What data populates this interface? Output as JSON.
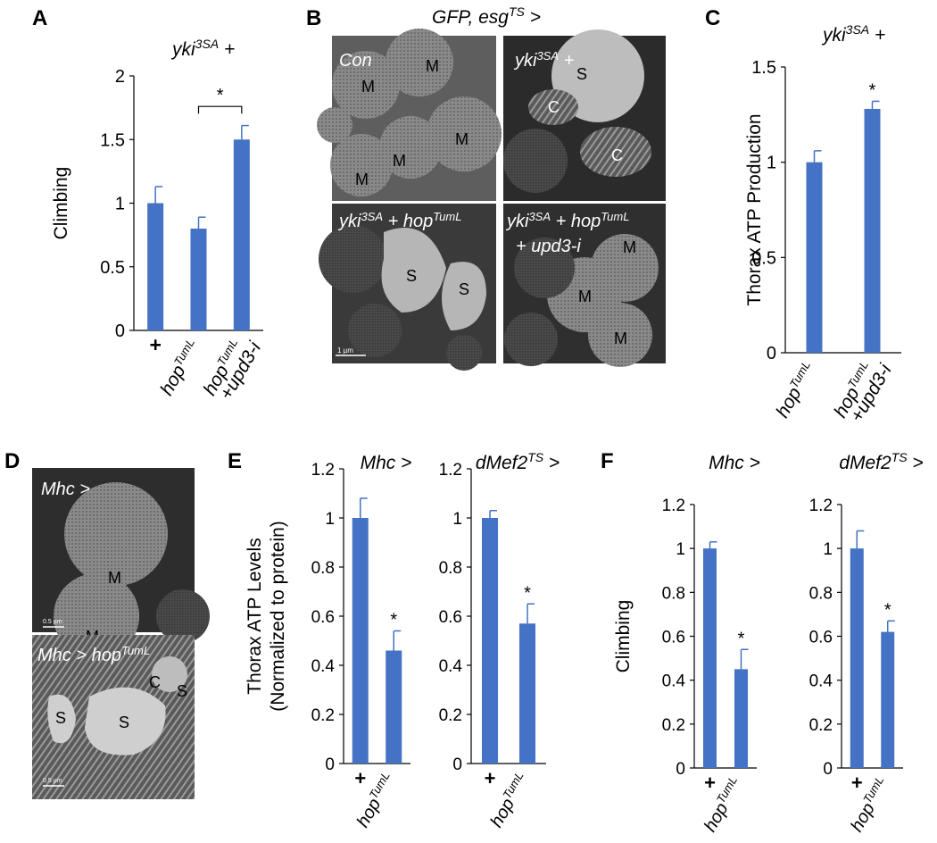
{
  "colors": {
    "bar": "#4472c4",
    "error": "#4472c4",
    "axis": "#000000"
  },
  "panels": {
    "A": {
      "letter": "A",
      "header": "yki3SA +"
    },
    "B": {
      "letter": "B",
      "header": "GFP, esgTS >",
      "images": [
        {
          "label": "Con",
          "marks": [
            "M",
            "M",
            "M",
            "M",
            "M",
            "M"
          ]
        },
        {
          "label": "yki3SA +",
          "marks": [
            "S",
            "C",
            "C"
          ]
        },
        {
          "label": "yki3SA + hopTumL",
          "marks": [
            "S",
            "S"
          ],
          "scalebar": "1 µm"
        },
        {
          "label": "yki3SA + hopTumL + upd3-i",
          "marks": [
            "M",
            "M",
            "M"
          ]
        }
      ]
    },
    "C": {
      "letter": "C",
      "header": "yki3SA +"
    },
    "D": {
      "letter": "D",
      "images": [
        {
          "label": "Mhc >",
          "marks": [
            "M",
            "M"
          ],
          "scalebar": "0.5 µm"
        },
        {
          "label": "Mhc > hopTumL",
          "marks": [
            "C",
            "S",
            "S",
            "S"
          ],
          "scalebar": "0.5 µm"
        }
      ]
    },
    "E": {
      "letter": "E"
    },
    "F": {
      "letter": "F"
    }
  },
  "chart_data": [
    {
      "id": "A",
      "type": "bar",
      "title": "",
      "ylabel": "Climbing",
      "categories": [
        "+",
        "hopTumL",
        "hopTumL +upd3-i"
      ],
      "values": [
        1.0,
        0.8,
        1.5
      ],
      "errors": [
        0.13,
        0.09,
        0.11
      ],
      "ylim": [
        0,
        2
      ],
      "yticks": [
        "0",
        "0.5",
        "1",
        "1.5",
        "2"
      ],
      "annotation": {
        "text": "*",
        "type": "bracket",
        "between": [
          1,
          2
        ]
      }
    },
    {
      "id": "C",
      "type": "bar",
      "ylabel": "Thorax ATP Production",
      "categories": [
        "hopTumL",
        "hopTumL +upd3-i"
      ],
      "values": [
        1.0,
        1.28
      ],
      "errors": [
        0.06,
        0.04
      ],
      "ylim": [
        0,
        1.5
      ],
      "yticks": [
        "0",
        "0.5",
        "1",
        "1.5"
      ],
      "significance": [
        "",
        "*"
      ]
    },
    {
      "id": "E-Mhc",
      "type": "bar",
      "title": "Mhc >",
      "ylabel": "Thorax ATP Levels (Normalized to protein)",
      "categories": [
        "+",
        "hopTumL"
      ],
      "values": [
        1.0,
        0.46
      ],
      "errors": [
        0.08,
        0.08
      ],
      "ylim": [
        0,
        1.2
      ],
      "yticks": [
        "0",
        "0.2",
        "0.4",
        "0.6",
        "0.8",
        "1",
        "1.2"
      ],
      "significance": [
        "",
        "*"
      ]
    },
    {
      "id": "E-dMef2",
      "type": "bar",
      "title": "dMef2TS >",
      "categories": [
        "+",
        "hopTumL"
      ],
      "values": [
        1.0,
        0.57
      ],
      "errors": [
        0.03,
        0.08
      ],
      "ylim": [
        0,
        1.2
      ],
      "yticks": [
        "0",
        "0.2",
        "0.4",
        "0.6",
        "0.8",
        "1",
        "1.2"
      ],
      "significance": [
        "",
        "*"
      ]
    },
    {
      "id": "F-Mhc",
      "type": "bar",
      "title": "Mhc >",
      "ylabel": "Climbing",
      "categories": [
        "+",
        "hopTumL"
      ],
      "values": [
        1.0,
        0.45
      ],
      "errors": [
        0.03,
        0.09
      ],
      "ylim": [
        0,
        1.2
      ],
      "yticks": [
        "0",
        "0.2",
        "0.4",
        "0.6",
        "0.8",
        "1",
        "1.2"
      ],
      "significance": [
        "",
        "*"
      ]
    },
    {
      "id": "F-dMef2",
      "type": "bar",
      "title": "dMef2TS >",
      "categories": [
        "+",
        "hopTumL"
      ],
      "values": [
        1.0,
        0.62
      ],
      "errors": [
        0.08,
        0.05
      ],
      "ylim": [
        0,
        1.2
      ],
      "yticks": [
        "0",
        "0.2",
        "0.4",
        "0.6",
        "0.8",
        "1",
        "1.2"
      ],
      "significance": [
        "",
        "*"
      ]
    }
  ]
}
